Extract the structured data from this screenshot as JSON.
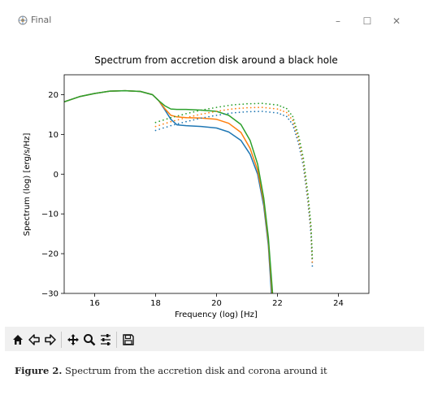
{
  "window": {
    "title": "Final",
    "controls": {
      "minimize": "–",
      "maximize": "☐",
      "close": "✕"
    }
  },
  "toolbar": {
    "icons": [
      "home-icon",
      "back-arrow-icon",
      "forward-arrow-icon",
      "pan-icon",
      "zoom-icon",
      "configure-subplots-icon",
      "save-icon"
    ]
  },
  "caption": {
    "label": "Figure 2.",
    "text": "Spectrum from the accretion disk and corona around it"
  },
  "chart_data": {
    "type": "line",
    "title": "Spectrum from accretion disk around a black hole",
    "xlabel": "Frequency (log) [Hz]",
    "ylabel": "Spectrum (log) [erg/s/Hz]",
    "xlim": [
      15,
      25
    ],
    "ylim": [
      -30,
      25
    ],
    "xticks": [
      16,
      18,
      20,
      22,
      24
    ],
    "yticks": [
      -30,
      -20,
      -10,
      0,
      10,
      20
    ],
    "xticklabels": [
      "16",
      "18",
      "20",
      "22",
      "24"
    ],
    "yticklabels": [
      "−30",
      "−20",
      "−10",
      "0",
      "10",
      "20"
    ],
    "grid": false,
    "colors": {
      "blue": "#1f77b4",
      "orange": "#ff7f0e",
      "green": "#2ca02c"
    },
    "series": [
      {
        "style": "solid",
        "color": "#1f77b4",
        "points": [
          [
            15,
            18.2
          ],
          [
            15.5,
            19.5
          ],
          [
            16,
            20.3
          ],
          [
            16.5,
            20.9
          ],
          [
            17,
            21.0
          ],
          [
            17.5,
            20.8
          ],
          [
            17.9,
            20.0
          ],
          [
            18.1,
            18.5
          ],
          [
            18.3,
            16.2
          ],
          [
            18.5,
            13.8
          ],
          [
            18.7,
            12.4
          ],
          [
            19,
            12.2
          ],
          [
            19.5,
            12.0
          ],
          [
            20,
            11.6
          ],
          [
            20.4,
            10.6
          ],
          [
            20.8,
            8.5
          ],
          [
            21.1,
            5.0
          ],
          [
            21.35,
            0
          ],
          [
            21.55,
            -8
          ],
          [
            21.7,
            -18
          ],
          [
            21.8,
            -30
          ]
        ]
      },
      {
        "style": "solid",
        "color": "#ff7f0e",
        "points": [
          [
            15,
            18.2
          ],
          [
            15.5,
            19.5
          ],
          [
            16,
            20.3
          ],
          [
            16.5,
            20.9
          ],
          [
            17,
            21.0
          ],
          [
            17.5,
            20.8
          ],
          [
            17.9,
            20.0
          ],
          [
            18.1,
            18.5
          ],
          [
            18.3,
            16.5
          ],
          [
            18.5,
            14.8
          ],
          [
            18.7,
            14.4
          ],
          [
            19,
            14.2
          ],
          [
            19.5,
            14.1
          ],
          [
            20,
            13.8
          ],
          [
            20.4,
            12.8
          ],
          [
            20.8,
            10.5
          ],
          [
            21.1,
            6.5
          ],
          [
            21.35,
            1
          ],
          [
            21.55,
            -7
          ],
          [
            21.7,
            -17
          ],
          [
            21.82,
            -30
          ]
        ]
      },
      {
        "style": "solid",
        "color": "#2ca02c",
        "points": [
          [
            15,
            18.2
          ],
          [
            15.5,
            19.5
          ],
          [
            16,
            20.3
          ],
          [
            16.5,
            20.9
          ],
          [
            17,
            21.0
          ],
          [
            17.5,
            20.8
          ],
          [
            17.9,
            20.0
          ],
          [
            18.1,
            18.5
          ],
          [
            18.3,
            17.2
          ],
          [
            18.5,
            16.4
          ],
          [
            18.7,
            16.3
          ],
          [
            19,
            16.3
          ],
          [
            19.5,
            16.1
          ],
          [
            20,
            15.8
          ],
          [
            20.4,
            14.8
          ],
          [
            20.8,
            12.5
          ],
          [
            21.1,
            8.5
          ],
          [
            21.35,
            2.5
          ],
          [
            21.55,
            -6
          ],
          [
            21.7,
            -16
          ],
          [
            21.84,
            -30
          ]
        ]
      },
      {
        "style": "dotted",
        "color": "#1f77b4",
        "points": [
          [
            18,
            11
          ],
          [
            18.5,
            12.2
          ],
          [
            19,
            13.2
          ],
          [
            19.5,
            14.1
          ],
          [
            20,
            14.8
          ],
          [
            20.5,
            15.4
          ],
          [
            21,
            15.7
          ],
          [
            21.5,
            15.8
          ],
          [
            22,
            15.4
          ],
          [
            22.3,
            14.5
          ],
          [
            22.5,
            12.5
          ],
          [
            22.7,
            7.5
          ],
          [
            22.85,
            2
          ],
          [
            23.0,
            -7
          ],
          [
            23.1,
            -15
          ],
          [
            23.15,
            -24
          ]
        ]
      },
      {
        "style": "dotted",
        "color": "#ff7f0e",
        "points": [
          [
            18,
            12
          ],
          [
            18.5,
            13.2
          ],
          [
            19,
            14.2
          ],
          [
            19.5,
            15.1
          ],
          [
            20,
            15.8
          ],
          [
            20.5,
            16.4
          ],
          [
            21,
            16.7
          ],
          [
            21.5,
            16.8
          ],
          [
            22,
            16.4
          ],
          [
            22.3,
            15.5
          ],
          [
            22.5,
            13.5
          ],
          [
            22.7,
            8.5
          ],
          [
            22.85,
            3
          ],
          [
            23.0,
            -6
          ],
          [
            23.1,
            -14
          ],
          [
            23.15,
            -23
          ]
        ]
      },
      {
        "style": "dotted",
        "color": "#2ca02c",
        "points": [
          [
            18,
            13
          ],
          [
            18.5,
            14.2
          ],
          [
            19,
            15.2
          ],
          [
            19.5,
            16.1
          ],
          [
            20,
            16.8
          ],
          [
            20.5,
            17.4
          ],
          [
            21,
            17.7
          ],
          [
            21.5,
            17.8
          ],
          [
            22,
            17.4
          ],
          [
            22.3,
            16.5
          ],
          [
            22.5,
            14.5
          ],
          [
            22.7,
            9.5
          ],
          [
            22.85,
            4
          ],
          [
            23.0,
            -5
          ],
          [
            23.1,
            -13
          ],
          [
            23.15,
            -22
          ]
        ]
      }
    ]
  }
}
